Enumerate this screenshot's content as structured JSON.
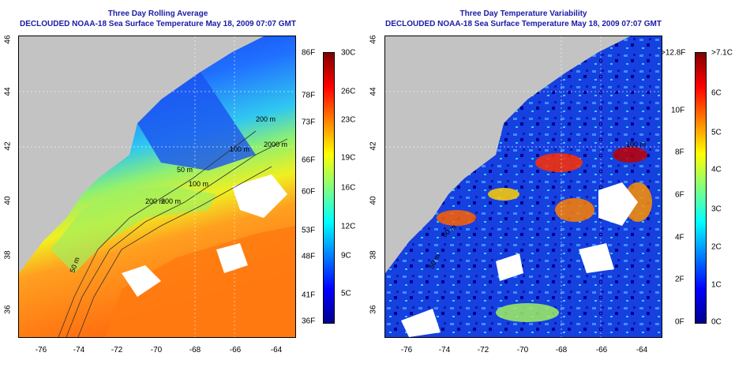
{
  "left_panel": {
    "title_line1": "Three Day Rolling Average",
    "title_line2": "DECLOUDED NOAA-18 Sea Surface Temperature May 18, 2009 07:07 GMT",
    "x_ticks": [
      "-76",
      "-74",
      "-72",
      "-70",
      "-68",
      "-66",
      "-64"
    ],
    "y_ticks": [
      "46",
      "44",
      "42",
      "40",
      "38",
      "36"
    ],
    "contour_labels": [
      "200 m",
      "100 m",
      "2000 m",
      "200 m",
      "100 m",
      "50 m",
      "200 m",
      "50 m"
    ],
    "colorbar_f": [
      "86F",
      "78F",
      "73F",
      "66F",
      "60F",
      "53F",
      "48F",
      "41F",
      "36F"
    ],
    "colorbar_c": [
      "30C",
      "26C",
      "23C",
      "19C",
      "16C",
      "12C",
      "9C",
      "5C"
    ]
  },
  "right_panel": {
    "title_line1": "Three Day Temperature Variability",
    "title_line2": "DECLOUDED NOAA-18 Sea Surface Temperature May 18, 2009 07:07 GMT",
    "x_ticks": [
      "-76",
      "-74",
      "-72",
      "-70",
      "-68",
      "-66",
      "-64"
    ],
    "y_ticks": [
      "46",
      "44",
      "42",
      "40",
      "38",
      "36"
    ],
    "contour_labels": [
      "100 m",
      "50 m",
      "50 m"
    ],
    "colorbar_f": [
      ">12.8F",
      "10F",
      "8F",
      "6F",
      "4F",
      "2F",
      "0F"
    ],
    "colorbar_c": [
      ">7.1C",
      "6C",
      "5C",
      "4C",
      "3C",
      "2C",
      "1C",
      "0C"
    ]
  },
  "colors": {
    "title": "#1a1aa8",
    "land": "#c3c3c3",
    "no_data": "#ffffff",
    "jet": [
      "#00008f",
      "#0000ff",
      "#0080ff",
      "#00ffff",
      "#80ff80",
      "#ffff00",
      "#ff8000",
      "#ff0000",
      "#800000"
    ]
  }
}
